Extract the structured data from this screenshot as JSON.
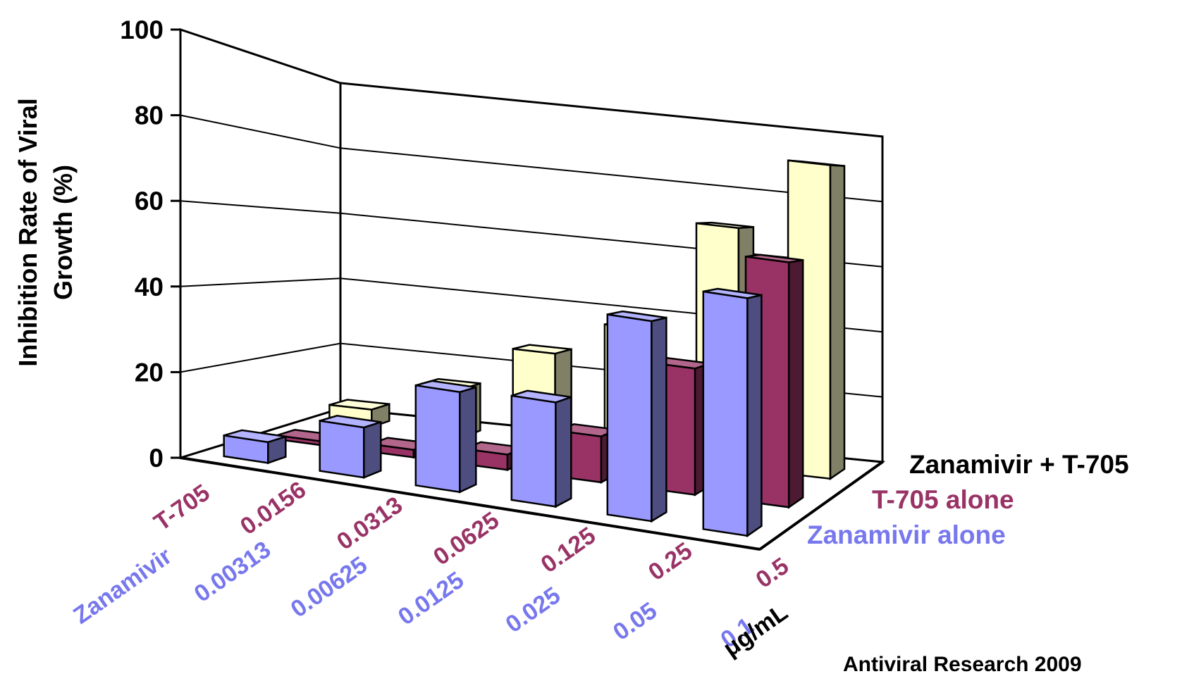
{
  "chart_data": {
    "type": "bar",
    "title": "",
    "xlabel": "",
    "ylabel": "Inhibition Rate of  Viral Growth (%)",
    "ylabel_lines": [
      "Inhibition Rate of  Viral",
      "Growth (%)"
    ],
    "ylim": [
      0,
      100
    ],
    "yticks": [
      0,
      20,
      40,
      60,
      80,
      100
    ],
    "grid": true,
    "perspective": "3d",
    "unit_label": "μg/mL",
    "row_headers": {
      "zanamivir": "Zanamivir",
      "t705": "T-705"
    },
    "categories_zanamivir": [
      "0.00313",
      "0.00625",
      "0.0125",
      "0.025",
      "0.05",
      "0.1"
    ],
    "categories_t705": [
      "0.0156",
      "0.0313",
      "0.0625",
      "0.125",
      "0.25",
      "0.5"
    ],
    "series": [
      {
        "name": "Zanamivir alone",
        "key": "zanamivir",
        "color": "#9999ff",
        "values": [
          5,
          12,
          24,
          25,
          48,
          57
        ]
      },
      {
        "name": "T-705 alone",
        "key": "t705",
        "color": "#993366",
        "values": [
          1,
          2,
          4,
          12,
          33,
          64
        ]
      },
      {
        "name": "Zanamivir + T-705",
        "key": "combo",
        "color": "#ffffcc",
        "values": [
          5,
          14,
          27,
          37,
          69,
          90
        ]
      }
    ],
    "legend": {
      "placement": "right",
      "entries": [
        "Zanamivir + T-705",
        "T-705 alone",
        "Zanamivir alone"
      ],
      "colors": [
        "#000000",
        "#993366",
        "#7777ee"
      ]
    },
    "source_note": "Antiviral Research 2009"
  }
}
